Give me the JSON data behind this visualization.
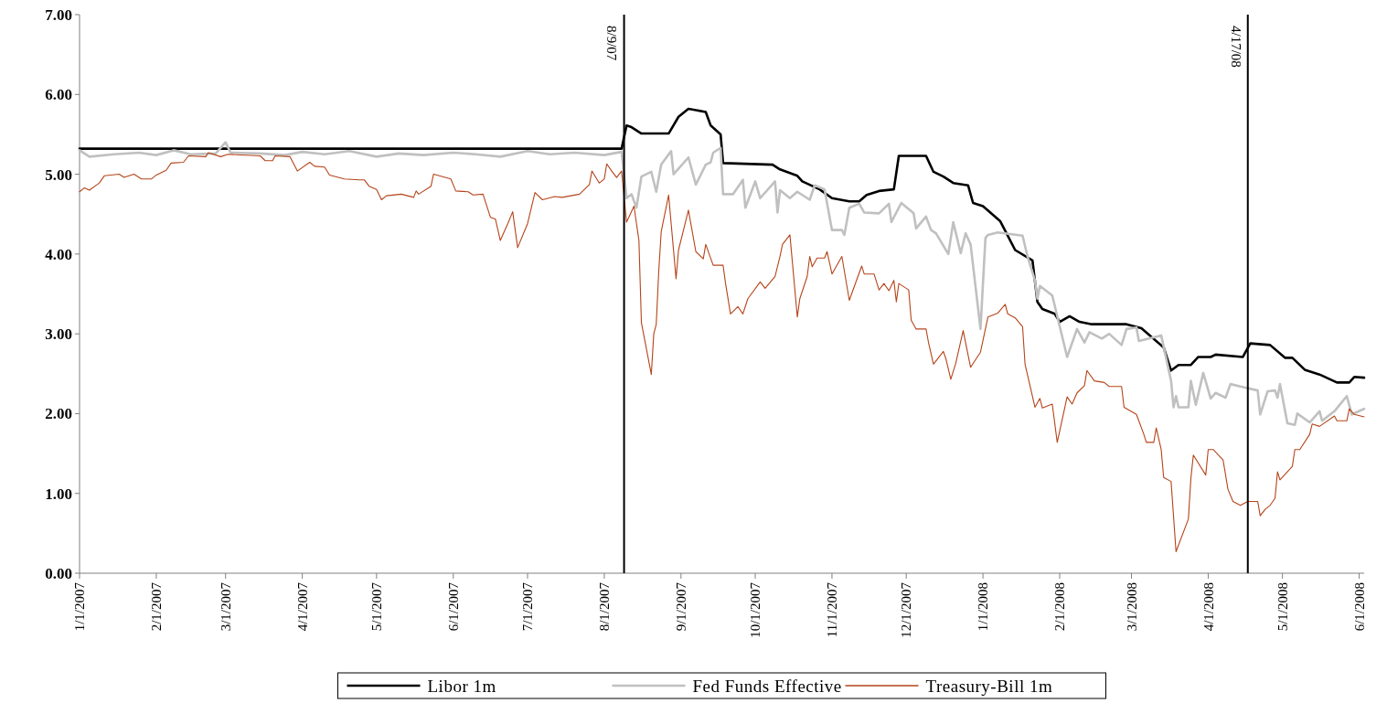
{
  "chart_data": {
    "type": "line",
    "xlim": [
      "2007-01-01",
      "2008-06-03"
    ],
    "ylim": [
      0,
      7
    ],
    "yticks": [
      {
        "value": 0,
        "label": "0.00"
      },
      {
        "value": 1,
        "label": "1.00"
      },
      {
        "value": 2,
        "label": "2.00"
      },
      {
        "value": 3,
        "label": "3.00"
      },
      {
        "value": 4,
        "label": "4.00"
      },
      {
        "value": 5,
        "label": "5.00"
      },
      {
        "value": 6,
        "label": "6.00"
      },
      {
        "value": 7,
        "label": "7.00"
      }
    ],
    "xticks": [
      {
        "value": "2007-01-01",
        "label": "1/1/2007"
      },
      {
        "value": "2007-02-01",
        "label": "2/1/2007"
      },
      {
        "value": "2007-03-01",
        "label": "3/1/2007"
      },
      {
        "value": "2007-04-01",
        "label": "4/1/2007"
      },
      {
        "value": "2007-05-01",
        "label": "5/1/2007"
      },
      {
        "value": "2007-06-01",
        "label": "6/1/2007"
      },
      {
        "value": "2007-07-01",
        "label": "7/1/2007"
      },
      {
        "value": "2007-08-01",
        "label": "8/1/2007"
      },
      {
        "value": "2007-09-01",
        "label": "9/1/2007"
      },
      {
        "value": "2007-10-01",
        "label": "10/1/2007"
      },
      {
        "value": "2007-11-01",
        "label": "11/1/2007"
      },
      {
        "value": "2007-12-01",
        "label": "12/1/2007"
      },
      {
        "value": "2008-01-01",
        "label": "1/1/2008"
      },
      {
        "value": "2008-02-01",
        "label": "2/1/2008"
      },
      {
        "value": "2008-03-01",
        "label": "3/1/2008"
      },
      {
        "value": "2008-04-01",
        "label": "4/1/2008"
      },
      {
        "value": "2008-05-01",
        "label": "5/1/2008"
      },
      {
        "value": "2008-06-01",
        "label": "6/1/2008"
      }
    ],
    "grid": false,
    "legend": "bottom",
    "line_style": "solid",
    "ref_lines": [
      {
        "axis": "x",
        "value": "2007-08-09",
        "label": "8/9/07",
        "color": "#000000"
      },
      {
        "axis": "x",
        "value": "2008-04-17",
        "label": "4/17/08",
        "color": "#000000"
      }
    ],
    "series": [
      {
        "name": "Libor 1m",
        "color": "#000000",
        "x": [
          "2007-01-01",
          "2007-08-08",
          "2007-08-10",
          "2007-08-12",
          "2007-08-16",
          "2007-08-27",
          "2007-08-31",
          "2007-09-04",
          "2007-09-11",
          "2007-09-13",
          "2007-09-17",
          "2007-09-18",
          "2007-10-08",
          "2007-10-11",
          "2007-10-18",
          "2007-10-20",
          "2007-10-27",
          "2007-11-01",
          "2007-11-08",
          "2007-11-12",
          "2007-11-15",
          "2007-11-20",
          "2007-11-26",
          "2007-11-28",
          "2007-12-09",
          "2007-12-12",
          "2007-12-16",
          "2007-12-20",
          "2007-12-26",
          "2007-12-28",
          "2008-01-01",
          "2008-01-08",
          "2008-01-14",
          "2008-01-21",
          "2008-01-23",
          "2008-01-25",
          "2008-01-30",
          "2008-02-01",
          "2008-02-05",
          "2008-02-09",
          "2008-02-14",
          "2008-02-28",
          "2008-03-05",
          "2008-03-14",
          "2008-03-17",
          "2008-03-20",
          "2008-03-25",
          "2008-03-28",
          "2008-04-02",
          "2008-04-04",
          "2008-04-15",
          "2008-04-18",
          "2008-04-26",
          "2008-05-02",
          "2008-05-05",
          "2008-05-10",
          "2008-05-16",
          "2008-05-23",
          "2008-05-28",
          "2008-05-30",
          "2008-06-03"
        ],
        "values": [
          5.32,
          5.32,
          5.61,
          5.59,
          5.51,
          5.51,
          5.72,
          5.82,
          5.78,
          5.61,
          5.5,
          5.14,
          5.12,
          5.06,
          4.98,
          4.91,
          4.81,
          4.7,
          4.66,
          4.66,
          4.74,
          4.79,
          4.81,
          5.23,
          5.23,
          5.03,
          4.97,
          4.89,
          4.86,
          4.64,
          4.6,
          4.41,
          4.05,
          3.92,
          3.4,
          3.31,
          3.25,
          3.15,
          3.22,
          3.15,
          3.12,
          3.12,
          3.07,
          2.83,
          2.54,
          2.61,
          2.61,
          2.71,
          2.71,
          2.74,
          2.71,
          2.88,
          2.86,
          2.7,
          2.7,
          2.55,
          2.49,
          2.39,
          2.39,
          2.46,
          2.45
        ]
      },
      {
        "name": "Fed Funds Effective",
        "color": "#c0c0c0",
        "x": [
          "2007-01-01",
          "2007-01-05",
          "2007-01-15",
          "2007-01-25",
          "2007-02-01",
          "2007-02-08",
          "2007-02-15",
          "2007-02-25",
          "2007-03-01",
          "2007-03-03",
          "2007-03-15",
          "2007-03-25",
          "2007-04-01",
          "2007-04-10",
          "2007-04-20",
          "2007-05-01",
          "2007-05-10",
          "2007-05-20",
          "2007-06-01",
          "2007-06-10",
          "2007-06-20",
          "2007-07-01",
          "2007-07-10",
          "2007-07-20",
          "2007-08-01",
          "2007-08-08",
          "2007-08-10",
          "2007-08-12",
          "2007-08-14",
          "2007-08-16",
          "2007-08-20",
          "2007-08-22",
          "2007-08-24",
          "2007-08-28",
          "2007-08-29",
          "2007-09-04",
          "2007-09-07",
          "2007-09-11",
          "2007-09-13",
          "2007-09-14",
          "2007-09-17",
          "2007-09-18",
          "2007-09-22",
          "2007-09-26",
          "2007-09-27",
          "2007-10-01",
          "2007-10-03",
          "2007-10-09",
          "2007-10-10",
          "2007-10-11",
          "2007-10-15",
          "2007-10-18",
          "2007-10-23",
          "2007-10-25",
          "2007-10-29",
          "2007-11-01",
          "2007-11-05",
          "2007-11-06",
          "2007-11-08",
          "2007-11-12",
          "2007-11-14",
          "2007-11-20",
          "2007-11-24",
          "2007-11-25",
          "2007-11-29",
          "2007-12-04",
          "2007-12-05",
          "2007-12-09",
          "2007-12-11",
          "2007-12-13",
          "2007-12-18",
          "2007-12-20",
          "2007-12-23",
          "2007-12-25",
          "2007-12-27",
          "2007-12-31",
          "2008-01-02",
          "2008-01-03",
          "2008-01-07",
          "2008-01-17",
          "2008-01-19",
          "2008-01-22",
          "2008-01-23",
          "2008-01-24",
          "2008-01-29",
          "2008-02-04",
          "2008-02-08",
          "2008-02-11",
          "2008-02-13",
          "2008-02-18",
          "2008-02-21",
          "2008-02-26",
          "2008-02-28",
          "2008-03-03",
          "2008-03-04",
          "2008-03-13",
          "2008-03-17",
          "2008-03-18",
          "2008-03-19",
          "2008-03-20",
          "2008-03-24",
          "2008-03-25",
          "2008-03-27",
          "2008-03-30",
          "2008-04-02",
          "2008-04-04",
          "2008-04-08",
          "2008-04-10",
          "2008-04-14",
          "2008-04-21",
          "2008-04-22",
          "2008-04-25",
          "2008-04-28",
          "2008-04-29",
          "2008-04-30",
          "2008-05-03",
          "2008-05-06",
          "2008-05-07",
          "2008-05-12",
          "2008-05-16",
          "2008-05-17",
          "2008-05-22",
          "2008-05-27",
          "2008-05-29",
          "2008-06-03"
        ],
        "values": [
          5.3,
          5.22,
          5.25,
          5.27,
          5.24,
          5.3,
          5.25,
          5.26,
          5.4,
          5.27,
          5.26,
          5.24,
          5.28,
          5.25,
          5.29,
          5.22,
          5.26,
          5.24,
          5.27,
          5.25,
          5.22,
          5.29,
          5.25,
          5.27,
          5.24,
          5.28,
          4.7,
          4.75,
          4.58,
          4.97,
          5.03,
          4.78,
          5.12,
          5.29,
          5.0,
          5.21,
          4.87,
          5.12,
          5.15,
          5.27,
          5.33,
          4.75,
          4.75,
          4.93,
          4.58,
          4.91,
          4.7,
          4.91,
          4.52,
          4.8,
          4.7,
          4.78,
          4.68,
          4.86,
          4.81,
          4.3,
          4.3,
          4.24,
          4.58,
          4.63,
          4.52,
          4.51,
          4.63,
          4.4,
          4.64,
          4.51,
          4.32,
          4.47,
          4.3,
          4.26,
          4.0,
          4.4,
          4.01,
          4.26,
          4.12,
          3.06,
          4.2,
          4.24,
          4.27,
          4.23,
          3.97,
          3.67,
          3.44,
          3.6,
          3.48,
          2.71,
          3.06,
          2.89,
          3.02,
          2.94,
          3.0,
          2.86,
          3.06,
          3.08,
          2.91,
          2.98,
          2.41,
          2.08,
          2.22,
          2.08,
          2.08,
          2.41,
          2.11,
          2.51,
          2.19,
          2.26,
          2.2,
          2.37,
          2.34,
          2.29,
          1.99,
          2.28,
          2.29,
          2.2,
          2.37,
          1.88,
          1.86,
          2.0,
          1.89,
          2.03,
          1.91,
          2.03,
          2.22,
          1.99,
          2.06
        ]
      },
      {
        "name": "Treasury-Bill 1m",
        "color": "#b5441a",
        "x": [
          "2007-01-01",
          "2007-01-03",
          "2007-01-05",
          "2007-01-09",
          "2007-01-11",
          "2007-01-17",
          "2007-01-19",
          "2007-01-23",
          "2007-01-26",
          "2007-01-30",
          "2007-02-01",
          "2007-02-05",
          "2007-02-07",
          "2007-02-12",
          "2007-02-14",
          "2007-02-21",
          "2007-02-22",
          "2007-02-27",
          "2007-03-02",
          "2007-03-15",
          "2007-03-17",
          "2007-03-20",
          "2007-03-21",
          "2007-03-27",
          "2007-03-30",
          "2007-04-04",
          "2007-04-06",
          "2007-04-10",
          "2007-04-12",
          "2007-04-18",
          "2007-04-24",
          "2007-04-26",
          "2007-04-28",
          "2007-05-01",
          "2007-05-03",
          "2007-05-05",
          "2007-05-11",
          "2007-05-16",
          "2007-05-17",
          "2007-05-18",
          "2007-05-23",
          "2007-05-24",
          "2007-05-31",
          "2007-06-02",
          "2007-06-07",
          "2007-06-09",
          "2007-06-13",
          "2007-06-16",
          "2007-06-18",
          "2007-06-20",
          "2007-06-23",
          "2007-06-25",
          "2007-06-27",
          "2007-07-01",
          "2007-07-04",
          "2007-07-07",
          "2007-07-12",
          "2007-07-15",
          "2007-07-22",
          "2007-07-26",
          "2007-07-27",
          "2007-07-30",
          "2007-08-01",
          "2007-08-02",
          "2007-08-04",
          "2007-08-06",
          "2007-08-08",
          "2007-08-10",
          "2007-08-13",
          "2007-08-15",
          "2007-08-16",
          "2007-08-20",
          "2007-08-21",
          "2007-08-22",
          "2007-08-23",
          "2007-08-24",
          "2007-08-27",
          "2007-08-30",
          "2007-08-31",
          "2007-09-04",
          "2007-09-07",
          "2007-09-10",
          "2007-09-11",
          "2007-09-14",
          "2007-09-18",
          "2007-09-19",
          "2007-09-21",
          "2007-09-24",
          "2007-09-26",
          "2007-09-28",
          "2007-10-03",
          "2007-10-05",
          "2007-10-09",
          "2007-10-11",
          "2007-10-12",
          "2007-10-15",
          "2007-10-18",
          "2007-10-19",
          "2007-10-22",
          "2007-10-23",
          "2007-10-24",
          "2007-10-26",
          "2007-10-29",
          "2007-10-30",
          "2007-11-01",
          "2007-11-05",
          "2007-11-08",
          "2007-11-13",
          "2007-11-14",
          "2007-11-18",
          "2007-11-20",
          "2007-11-22",
          "2007-11-24",
          "2007-11-26",
          "2007-11-27",
          "2007-11-28",
          "2007-12-02",
          "2007-12-03",
          "2007-12-05",
          "2007-12-09",
          "2007-12-10",
          "2007-12-12",
          "2007-12-16",
          "2007-12-17",
          "2007-12-19",
          "2007-12-21",
          "2007-12-24",
          "2007-12-27",
          "2007-12-31",
          "2008-01-03",
          "2008-01-07",
          "2008-01-10",
          "2008-01-11",
          "2008-01-14",
          "2008-01-17",
          "2008-01-18",
          "2008-01-22",
          "2008-01-24",
          "2008-01-25",
          "2008-01-29",
          "2008-01-31",
          "2008-02-04",
          "2008-02-06",
          "2008-02-08",
          "2008-02-11",
          "2008-02-12",
          "2008-02-15",
          "2008-02-19",
          "2008-02-21",
          "2008-02-26",
          "2008-02-27",
          "2008-03-03",
          "2008-03-06",
          "2008-03-07",
          "2008-03-10",
          "2008-03-11",
          "2008-03-13",
          "2008-03-14",
          "2008-03-17",
          "2008-03-19",
          "2008-03-24",
          "2008-03-25",
          "2008-03-26",
          "2008-03-31",
          "2008-04-01",
          "2008-04-03",
          "2008-04-07",
          "2008-04-09",
          "2008-04-11",
          "2008-04-14",
          "2008-04-17",
          "2008-04-21",
          "2008-04-22",
          "2008-04-24",
          "2008-04-26",
          "2008-04-28",
          "2008-04-29",
          "2008-04-30",
          "2008-05-05",
          "2008-05-06",
          "2008-05-08",
          "2008-05-12",
          "2008-05-13",
          "2008-05-16",
          "2008-05-22",
          "2008-05-23",
          "2008-05-27",
          "2008-05-28",
          "2008-05-30",
          "2008-06-03"
        ],
        "values": [
          4.78,
          4.83,
          4.8,
          4.89,
          4.98,
          5.0,
          4.96,
          5.0,
          4.94,
          4.94,
          4.99,
          5.05,
          5.14,
          5.15,
          5.23,
          5.22,
          5.27,
          5.22,
          5.25,
          5.23,
          5.17,
          5.17,
          5.23,
          5.22,
          5.04,
          5.15,
          5.1,
          5.09,
          4.99,
          4.94,
          4.93,
          4.93,
          4.85,
          4.81,
          4.68,
          4.73,
          4.75,
          4.71,
          4.79,
          4.75,
          4.85,
          5.0,
          4.94,
          4.79,
          4.78,
          4.74,
          4.75,
          4.46,
          4.44,
          4.17,
          4.38,
          4.53,
          4.08,
          4.38,
          4.77,
          4.68,
          4.72,
          4.71,
          4.75,
          4.87,
          5.04,
          4.89,
          4.94,
          5.13,
          5.04,
          4.96,
          5.04,
          4.4,
          4.6,
          4.17,
          3.14,
          2.49,
          3.0,
          3.12,
          3.78,
          4.28,
          4.74,
          3.69,
          4.05,
          4.55,
          4.03,
          3.94,
          4.12,
          3.86,
          3.86,
          3.63,
          3.25,
          3.34,
          3.25,
          3.44,
          3.65,
          3.57,
          3.72,
          3.97,
          4.12,
          4.24,
          3.21,
          3.44,
          3.72,
          3.97,
          3.84,
          3.95,
          3.95,
          4.03,
          3.75,
          3.97,
          3.42,
          3.85,
          3.75,
          3.75,
          3.55,
          3.63,
          3.54,
          3.67,
          3.4,
          3.63,
          3.55,
          3.17,
          3.06,
          3.06,
          2.89,
          2.62,
          2.78,
          2.69,
          2.43,
          2.63,
          3.04,
          2.58,
          2.77,
          3.21,
          3.26,
          3.37,
          3.25,
          3.2,
          3.09,
          2.62,
          2.08,
          2.19,
          2.07,
          2.12,
          1.64,
          2.21,
          2.12,
          2.26,
          2.35,
          2.54,
          2.41,
          2.39,
          2.34,
          2.34,
          2.08,
          1.99,
          1.74,
          1.64,
          1.64,
          1.82,
          1.55,
          1.2,
          1.15,
          0.27,
          0.68,
          1.19,
          1.48,
          1.23,
          1.55,
          1.55,
          1.42,
          1.05,
          0.9,
          0.85,
          0.9,
          0.9,
          0.72,
          0.8,
          0.85,
          0.94,
          1.27,
          1.17,
          1.34,
          1.55,
          1.55,
          1.74,
          1.87,
          1.84,
          1.97,
          1.91,
          1.91,
          2.06,
          1.99,
          1.96
        ]
      }
    ]
  }
}
